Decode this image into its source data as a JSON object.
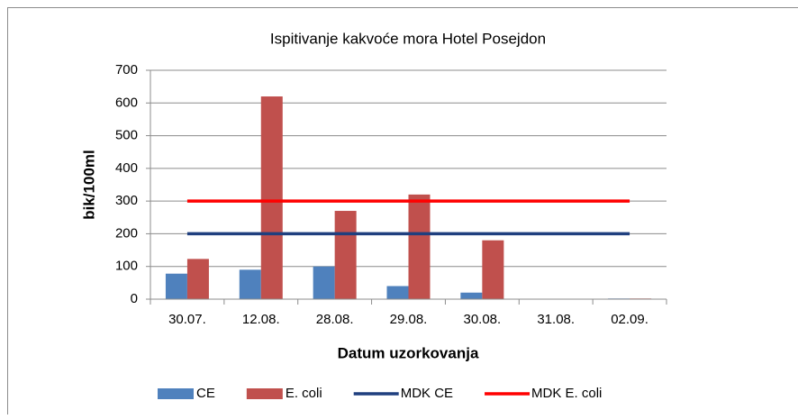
{
  "chart_data": {
    "type": "bar",
    "title": "Ispitivanje kakvoće mora Hotel Posejdon",
    "x_label": "Datum uzorkovanja",
    "y_label": "bik/100ml",
    "categories": [
      "30.07.",
      "12.08.",
      "28.08.",
      "29.08.",
      "30.08.",
      "31.08.",
      "02.09."
    ],
    "series": [
      {
        "name": "CE",
        "type": "bar",
        "color": "#4f81bd",
        "values": [
          78,
          90,
          100,
          40,
          20,
          0,
          2
        ]
      },
      {
        "name": "E. coli",
        "type": "bar",
        "color": "#c0504d",
        "values": [
          123,
          620,
          270,
          320,
          180,
          0,
          2
        ]
      },
      {
        "name": "MDK CE",
        "type": "line",
        "color": "#1f3f7f",
        "values": [
          200,
          200,
          200,
          200,
          200,
          200,
          200
        ]
      },
      {
        "name": "MDK E. coli",
        "type": "line",
        "color": "#ff0000",
        "values": [
          300,
          300,
          300,
          300,
          300,
          300,
          300
        ]
      }
    ],
    "ylim": [
      0,
      700
    ],
    "yticks": [
      0,
      100,
      200,
      300,
      400,
      500,
      600,
      700
    ],
    "grid": true,
    "legend": "bottom"
  }
}
